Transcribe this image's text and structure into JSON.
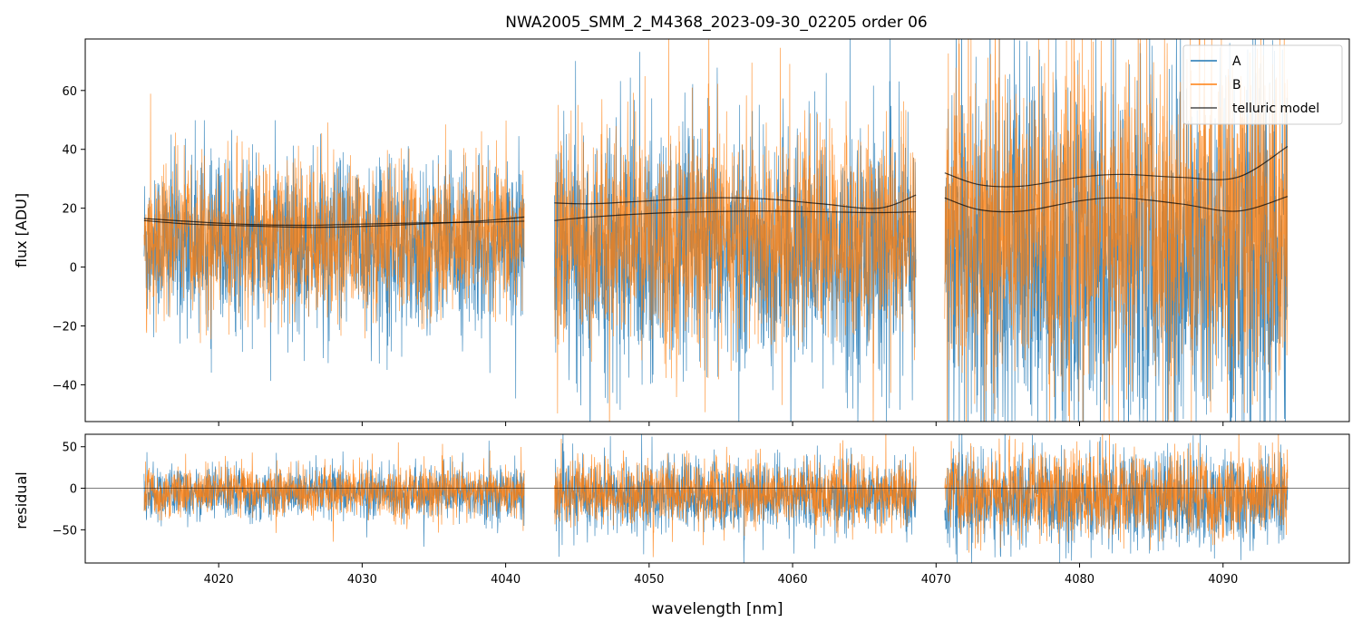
{
  "figure": {
    "title": "NWA2005_SMM_2_M4368_2023-09-30_02205  order 06"
  },
  "chart_data": [
    {
      "panel": "top",
      "type": "line",
      "title": "NWA2005_SMM_2_M4368_2023-09-30_02205  order 06",
      "xlabel": "",
      "ylabel": "flux [ADU]",
      "xlim": [
        4010.7,
        4098.8
      ],
      "ylim": [
        -52.5,
        77.5
      ],
      "x_ticks": [
        4020,
        4030,
        4040,
        4050,
        4060,
        4070,
        4080,
        4090
      ],
      "y_ticks": [
        -40,
        -20,
        0,
        20,
        40,
        60
      ],
      "y_tick_labels": [
        "−40",
        "−20",
        "0",
        "20",
        "40",
        "60"
      ],
      "legend": {
        "placement": "top-right",
        "entries": [
          "A",
          "B",
          "telluric model"
        ]
      },
      "colors": {
        "A": "#1f77b4",
        "B": "#ff7f0e",
        "telluric model": "#000000"
      },
      "segments": [
        {
          "x_range": [
            4014.8,
            4041.3
          ]
        },
        {
          "x_range": [
            4043.4,
            4068.6
          ]
        },
        {
          "x_range": [
            4070.6,
            4094.5
          ]
        }
      ],
      "series": [
        {
          "name": "A",
          "style": "noisy spectrum",
          "segments": [
            {
              "x_range": [
                4014.8,
                4041.3
              ],
              "center": 8,
              "spread": 14
            },
            {
              "x_range": [
                4043.4,
                4068.6
              ],
              "center": 5,
              "spread": 20
            },
            {
              "x_range": [
                4070.6,
                4094.5
              ],
              "center": 2,
              "spread": 32
            }
          ]
        },
        {
          "name": "B",
          "style": "noisy spectrum",
          "segments": [
            {
              "x_range": [
                4014.8,
                4041.3
              ],
              "center": 9,
              "spread": 13
            },
            {
              "x_range": [
                4043.4,
                4068.6
              ],
              "center": 10,
              "spread": 18
            },
            {
              "x_range": [
                4070.6,
                4094.5
              ],
              "center": 14,
              "spread": 28
            }
          ]
        },
        {
          "name": "telluric model",
          "style": "smooth curves",
          "curves": [
            {
              "x": [
                4014.8,
                4018,
                4022,
                4026,
                4030,
                4034,
                4038,
                4041.3
              ],
              "y": [
                16.5,
                15.5,
                14.5,
                14.2,
                14.6,
                15.0,
                15.2,
                15.6
              ]
            },
            {
              "x": [
                4014.8,
                4018,
                4022,
                4026,
                4030,
                4034,
                4038,
                4041.3
              ],
              "y": [
                15.8,
                14.6,
                14.0,
                13.5,
                13.8,
                14.6,
                15.6,
                17.0
              ]
            },
            {
              "x": [
                4043.4,
                4046,
                4050,
                4054,
                4058,
                4062,
                4066,
                4068.6
              ],
              "y": [
                21.8,
                21.5,
                22.5,
                23.5,
                23.2,
                21.5,
                20.0,
                24.5
              ]
            },
            {
              "x": [
                4043.4,
                4046,
                4050,
                4054,
                4058,
                4062,
                4066,
                4068.6
              ],
              "y": [
                15.8,
                17.0,
                18.2,
                18.8,
                19.0,
                18.8,
                18.5,
                18.8
              ]
            },
            {
              "x": [
                4070.6,
                4073,
                4076,
                4080,
                4083,
                4087,
                4091,
                4094.5
              ],
              "y": [
                32.0,
                28.0,
                27.5,
                30.5,
                31.5,
                30.5,
                30.5,
                41.0
              ]
            },
            {
              "x": [
                4070.6,
                4073,
                4076,
                4080,
                4083,
                4087,
                4091,
                4094.5
              ],
              "y": [
                23.5,
                19.5,
                19.0,
                22.5,
                23.5,
                21.5,
                19.0,
                24.0
              ]
            }
          ]
        }
      ]
    },
    {
      "panel": "bottom",
      "type": "line",
      "xlabel": "wavelength [nm]",
      "ylabel": "residual",
      "xlim": [
        4010.7,
        4098.8
      ],
      "ylim": [
        -90,
        65
      ],
      "x_ticks": [
        4020,
        4030,
        4040,
        4050,
        4060,
        4070,
        4080,
        4090
      ],
      "x_tick_labels": [
        "4020",
        "4030",
        "4040",
        "4050",
        "4060",
        "4070",
        "4080",
        "4090"
      ],
      "y_ticks": [
        -50,
        0,
        50
      ],
      "y_tick_labels": [
        "−50",
        "0",
        "50"
      ],
      "reference_line_y": 0,
      "series": [
        {
          "name": "A",
          "segments": [
            {
              "x_range": [
                4014.8,
                4041.3
              ],
              "center": -6,
              "spread": 16
            },
            {
              "x_range": [
                4043.4,
                4068.6
              ],
              "center": -10,
              "spread": 22
            },
            {
              "x_range": [
                4070.6,
                4094.5
              ],
              "center": -15,
              "spread": 28
            }
          ]
        },
        {
          "name": "B",
          "segments": [
            {
              "x_range": [
                4014.8,
                4041.3
              ],
              "center": -4,
              "spread": 15
            },
            {
              "x_range": [
                4043.4,
                4068.6
              ],
              "center": -6,
              "spread": 20
            },
            {
              "x_range": [
                4070.6,
                4094.5
              ],
              "center": -8,
              "spread": 26
            }
          ]
        }
      ]
    }
  ]
}
